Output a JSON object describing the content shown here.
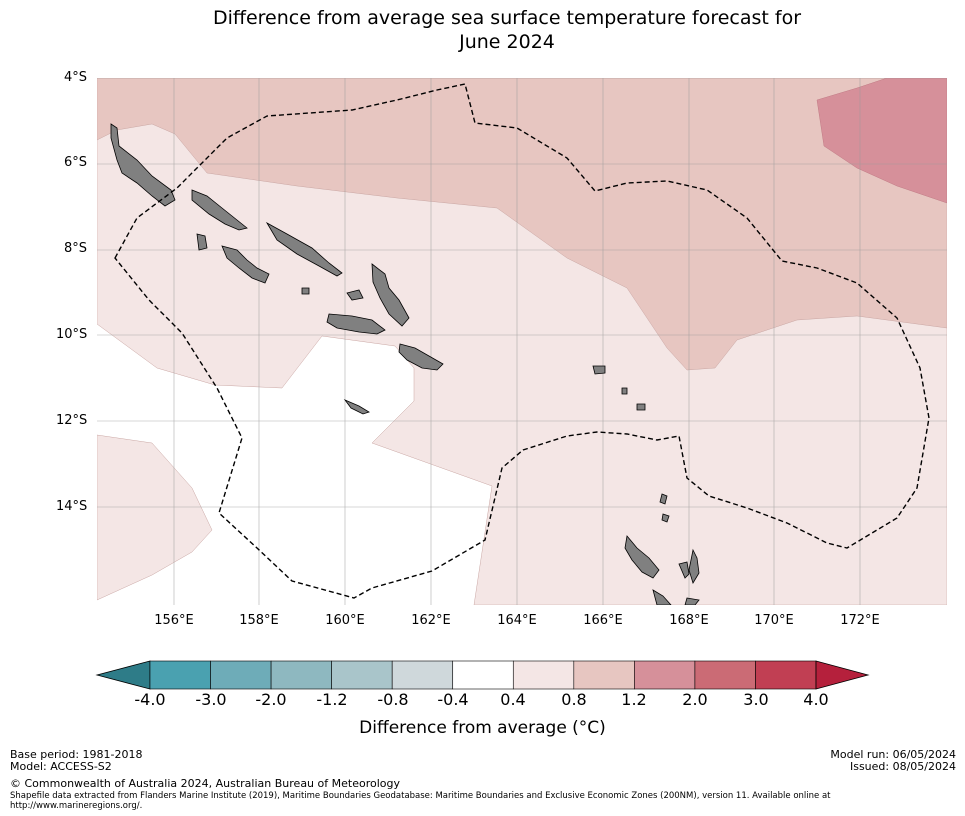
{
  "title": {
    "line1": "Difference from average sea surface temperature forecast for",
    "line2": "June 2024"
  },
  "axes": {
    "lat_labels": [
      "4°S",
      "6°S",
      "8°S",
      "10°S",
      "12°S",
      "14°S"
    ],
    "lon_labels": [
      "156°E",
      "158°E",
      "160°E",
      "162°E",
      "164°E",
      "166°E",
      "168°E",
      "170°E",
      "172°E"
    ]
  },
  "legend": {
    "ticks": [
      "-4.0",
      "-3.0",
      "-2.0",
      "-1.2",
      "-0.8",
      "-0.4",
      "0.4",
      "0.8",
      "1.2",
      "2.0",
      "3.0",
      "4.0"
    ],
    "label": "Difference from average ($^\\circ$C)",
    "label_display": "Difference from average (°C)",
    "colors": [
      "#2e7c88",
      "#4aa1b0",
      "#6eacb8",
      "#8eb8c0",
      "#a9c5ca",
      "#cfd8db",
      "#ffffff",
      "#f4e6e5",
      "#e7c6c1",
      "#d6909a",
      "#cb6b75",
      "#c13f53",
      "#b5203c"
    ]
  },
  "map_colors": {
    "band_0_4_0_8": "#f4e6e5",
    "band_0_8_1_2": "#e7c6c1",
    "band_1_2_2_0": "#d6909a",
    "land": "#808080"
  },
  "footer": {
    "base_period": "Base period: 1981-2018",
    "model": "Model: ACCESS-S2",
    "model_run": "Model run: 06/05/2024",
    "issued": "Issued: 08/05/2024",
    "copyright": "© Commonwealth of Australia 2024, Australian Bureau of Meteorology",
    "shapefile": "Shapefile data extracted from Flanders Marine Institute (2019), Maritime Boundaries Geodatabase: Maritime Boundaries and Exclusive Economic Zones (200NM), version 11. Available online at http://www.marineregions.org/."
  }
}
